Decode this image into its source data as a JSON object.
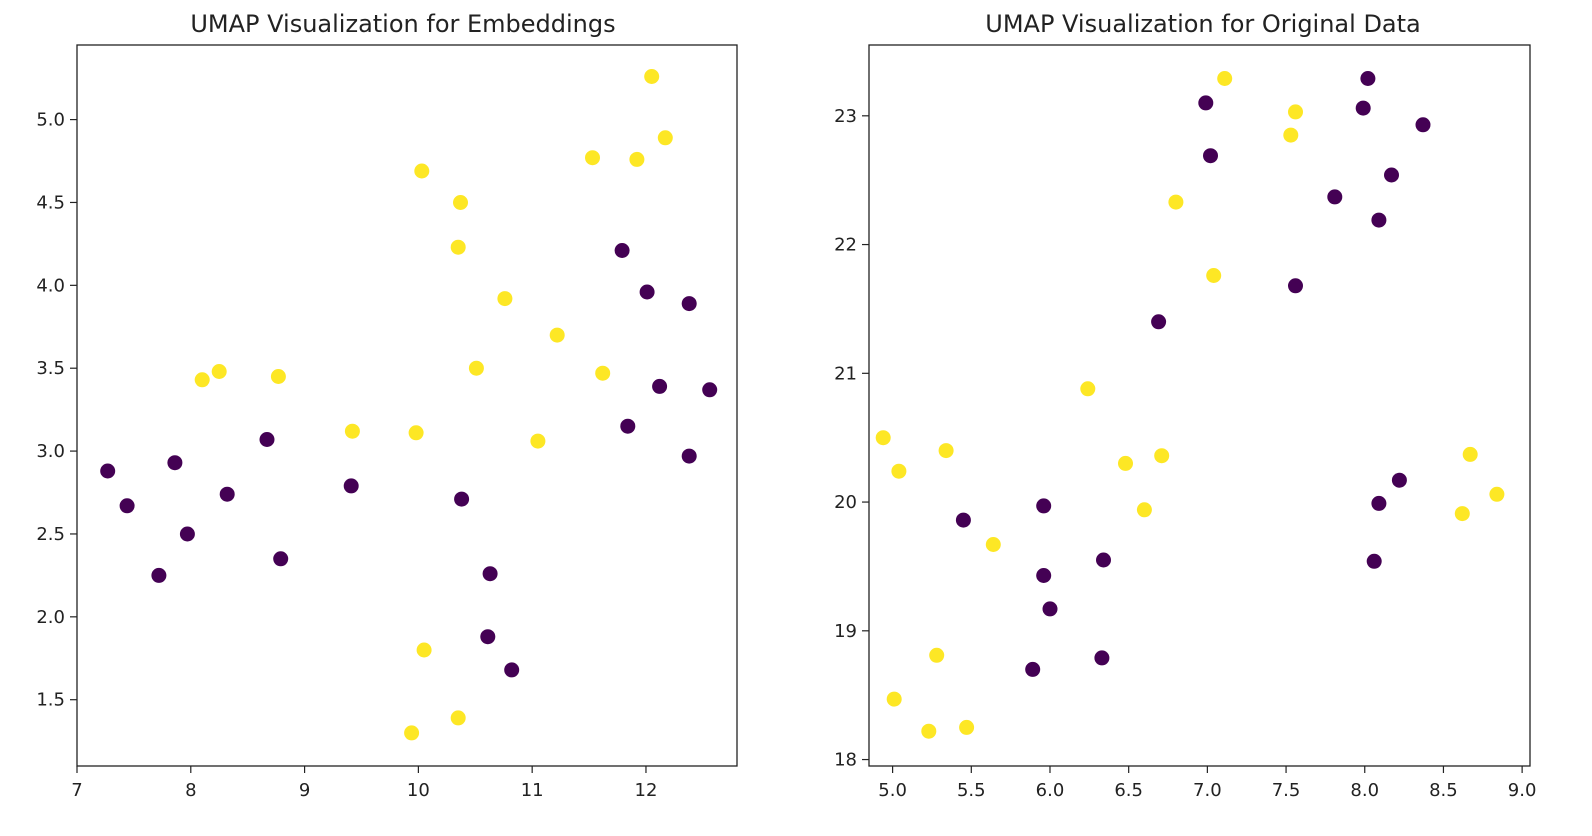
{
  "colors": {
    "class0": "#440154",
    "class1": "#fde725",
    "axis": "#222222",
    "background": "#ffffff"
  },
  "chart_data": [
    {
      "type": "scatter",
      "title": "UMAP Visualization for Embeddings",
      "xlabel": "",
      "ylabel": "",
      "xlim": [
        7.0,
        12.8
      ],
      "ylim": [
        1.1,
        5.45
      ],
      "xticks": [
        "7",
        "8",
        "9",
        "10",
        "11",
        "12"
      ],
      "yticks": [
        "1.5",
        "2.0",
        "2.5",
        "3.0",
        "3.5",
        "4.0",
        "4.5",
        "5.0"
      ],
      "grid": false,
      "series": [
        {
          "class": 0,
          "color": "#440154",
          "points": [
            [
              7.27,
              2.88
            ],
            [
              7.44,
              2.67
            ],
            [
              7.72,
              2.25
            ],
            [
              7.86,
              2.93
            ],
            [
              7.97,
              2.5
            ],
            [
              8.32,
              2.74
            ],
            [
              8.79,
              2.35
            ],
            [
              8.67,
              3.07
            ],
            [
              9.41,
              2.79
            ],
            [
              10.38,
              2.71
            ],
            [
              10.63,
              2.26
            ],
            [
              10.61,
              1.88
            ],
            [
              10.82,
              1.68
            ],
            [
              11.79,
              4.21
            ],
            [
              12.01,
              3.96
            ],
            [
              12.38,
              3.89
            ],
            [
              11.84,
              3.15
            ],
            [
              12.12,
              3.39
            ],
            [
              12.38,
              2.97
            ],
            [
              12.56,
              3.37
            ]
          ]
        },
        {
          "class": 1,
          "color": "#fde725",
          "points": [
            [
              8.1,
              3.43
            ],
            [
              8.25,
              3.48
            ],
            [
              8.77,
              3.45
            ],
            [
              9.42,
              3.12
            ],
            [
              9.98,
              3.11
            ],
            [
              10.03,
              4.69
            ],
            [
              10.37,
              4.5
            ],
            [
              10.35,
              4.23
            ],
            [
              10.76,
              3.92
            ],
            [
              10.51,
              3.5
            ],
            [
              11.05,
              3.06
            ],
            [
              11.22,
              3.7
            ],
            [
              11.53,
              4.77
            ],
            [
              11.62,
              3.47
            ],
            [
              11.92,
              4.76
            ],
            [
              12.05,
              5.26
            ],
            [
              12.17,
              4.89
            ],
            [
              10.05,
              1.8
            ],
            [
              9.94,
              1.3
            ],
            [
              10.35,
              1.39
            ]
          ]
        }
      ]
    },
    {
      "type": "scatter",
      "title": "UMAP Visualization for Original Data",
      "xlabel": "",
      "ylabel": "",
      "xlim": [
        4.85,
        9.05
      ],
      "ylim": [
        17.95,
        23.55
      ],
      "xticks": [
        "5.0",
        "5.5",
        "6.0",
        "6.5",
        "7.0",
        "7.5",
        "8.0",
        "8.5",
        "9.0"
      ],
      "yticks": [
        "18",
        "19",
        "20",
        "21",
        "22",
        "23"
      ],
      "grid": false,
      "series": [
        {
          "class": 0,
          "color": "#440154",
          "points": [
            [
              5.45,
              19.86
            ],
            [
              5.96,
              19.97
            ],
            [
              5.96,
              19.43
            ],
            [
              6.0,
              19.17
            ],
            [
              5.89,
              18.7
            ],
            [
              6.33,
              18.79
            ],
            [
              6.34,
              19.55
            ],
            [
              6.69,
              21.4
            ],
            [
              6.99,
              23.1
            ],
            [
              7.02,
              22.69
            ],
            [
              7.56,
              21.68
            ],
            [
              7.81,
              22.37
            ],
            [
              7.99,
              23.06
            ],
            [
              8.02,
              23.29
            ],
            [
              8.09,
              22.19
            ],
            [
              8.17,
              22.54
            ],
            [
              8.37,
              22.93
            ],
            [
              8.09,
              19.99
            ],
            [
              8.22,
              20.17
            ],
            [
              8.06,
              19.54
            ]
          ]
        },
        {
          "class": 1,
          "color": "#fde725",
          "points": [
            [
              4.94,
              20.5
            ],
            [
              5.04,
              20.24
            ],
            [
              5.34,
              20.4
            ],
            [
              5.28,
              18.81
            ],
            [
              5.01,
              18.47
            ],
            [
              5.23,
              18.22
            ],
            [
              5.47,
              18.25
            ],
            [
              5.64,
              19.67
            ],
            [
              6.24,
              20.88
            ],
            [
              6.48,
              20.3
            ],
            [
              6.6,
              19.94
            ],
            [
              6.71,
              20.36
            ],
            [
              6.8,
              22.33
            ],
            [
              7.04,
              21.76
            ],
            [
              7.11,
              23.29
            ],
            [
              7.53,
              22.85
            ],
            [
              7.56,
              23.03
            ],
            [
              8.62,
              19.91
            ],
            [
              8.67,
              20.37
            ],
            [
              8.84,
              20.06
            ]
          ]
        }
      ]
    }
  ]
}
